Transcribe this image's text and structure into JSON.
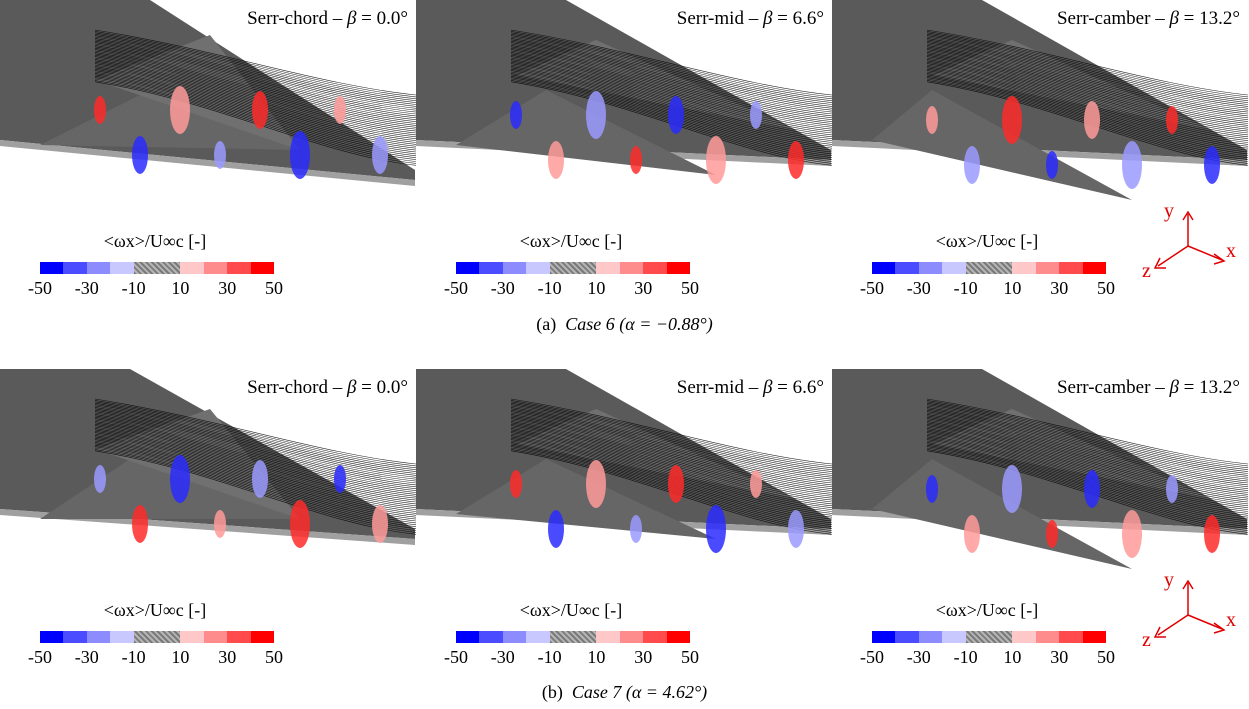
{
  "colorbar": {
    "label": "<ωx>/U∞c  [-]",
    "ticks": [
      "-50",
      "-30",
      "-10",
      "10",
      "30",
      "50"
    ],
    "colors": [
      "#0000ff",
      "#4b4bff",
      "#8c8cff",
      "#c8c8ff",
      "hatch",
      "#ffc8c8",
      "#ff8c8c",
      "#ff4b4b",
      "#ff0000"
    ]
  },
  "rows": [
    {
      "caption_prefix": "(a)",
      "caption_case": "Case 6",
      "caption_alpha": "α = −0.88°",
      "panels": [
        {
          "name_prefix": "Serr-chord – ",
          "beta": "β",
          "value": " = 0.0°"
        },
        {
          "name_prefix": "Serr-mid – ",
          "beta": "β",
          "value": " = 6.6°"
        },
        {
          "name_prefix": "Serr-camber – ",
          "beta": "β",
          "value": " = 13.2°"
        }
      ]
    },
    {
      "caption_prefix": "(b)",
      "caption_case": "Case 7",
      "caption_alpha": "α = 4.62°",
      "panels": [
        {
          "name_prefix": "Serr-chord – ",
          "beta": "β",
          "value": " = 0.0°"
        },
        {
          "name_prefix": "Serr-mid – ",
          "beta": "β",
          "value": " = 6.6°"
        },
        {
          "name_prefix": "Serr-camber – ",
          "beta": "β",
          "value": " = 13.2°"
        }
      ]
    }
  ],
  "axes": {
    "y": "y",
    "x": "x",
    "z": "z",
    "color": "#e00000"
  }
}
